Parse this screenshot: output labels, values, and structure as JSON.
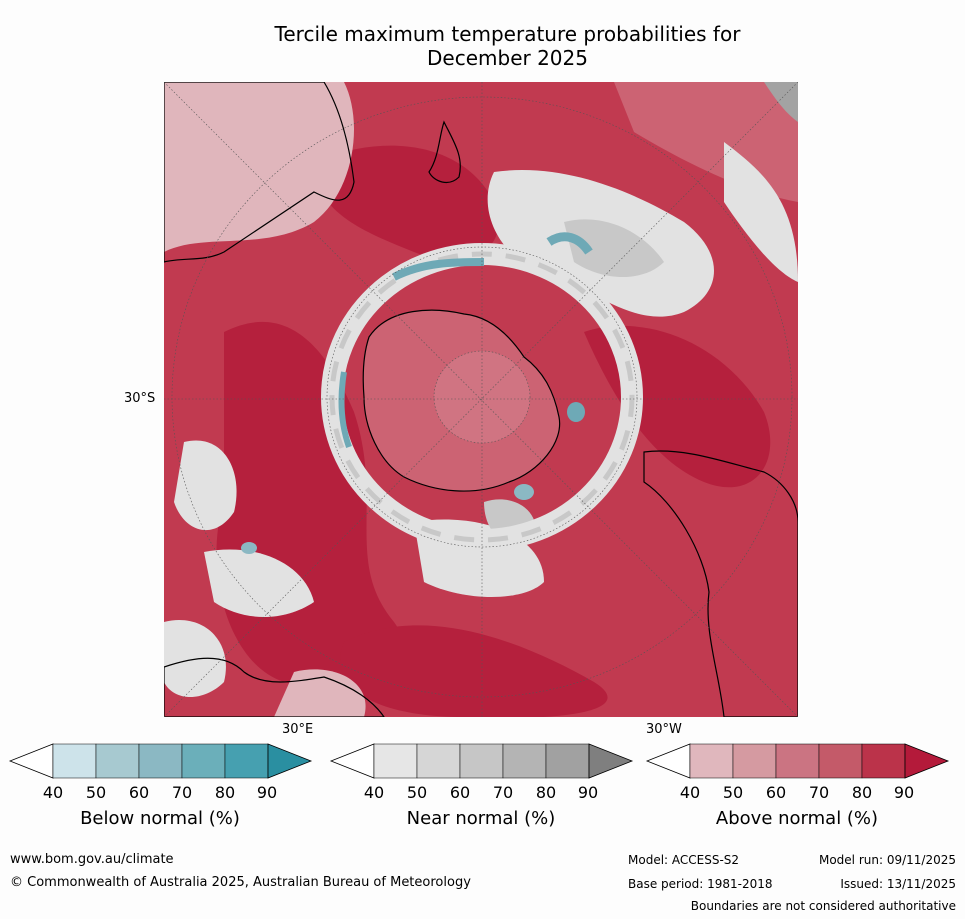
{
  "title_line1": "Tercile maximum temperature probabilities for",
  "title_line2": "December 2025",
  "map": {
    "lat_label": "30°S",
    "lon_label_e": "30°E",
    "lon_label_w": "30°W",
    "colors": {
      "above_90": "#b5203d",
      "above_80": "#c13a50",
      "above_70": "#cc6373",
      "above_60": "#d58a95",
      "above_50": "#e0b6bc",
      "near": "#e2e2e2",
      "near_dark": "#c8c8c8",
      "below": "#6ea9b6",
      "land_line": "#000000"
    }
  },
  "colorbars": [
    {
      "title": "Below normal (%)",
      "ticks": [
        "40",
        "50",
        "60",
        "70",
        "80",
        "90"
      ],
      "colors": [
        "#ffffff",
        "#cde3ea",
        "#a7c9d0",
        "#8bb8c3",
        "#6bafba",
        "#46a0b0",
        "#2a8fa1"
      ]
    },
    {
      "title": "Near normal (%)",
      "ticks": [
        "40",
        "50",
        "60",
        "70",
        "80",
        "90"
      ],
      "colors": [
        "#ffffff",
        "#e6e6e6",
        "#d6d6d6",
        "#c6c6c6",
        "#b4b4b4",
        "#a1a1a1",
        "#7f7f7f"
      ]
    },
    {
      "title": "Above normal (%)",
      "ticks": [
        "40",
        "50",
        "60",
        "70",
        "80",
        "90"
      ],
      "colors": [
        "#ffffff",
        "#e0b7bd",
        "#d59aa1",
        "#cb7482",
        "#c45a69",
        "#bb334a",
        "#b41a3a"
      ]
    }
  ],
  "footer": {
    "url": "www.bom.gov.au/climate",
    "copyright": "© Commonwealth of Australia 2025, Australian Bureau of Meteorology",
    "model": "Model: ACCESS-S2",
    "base_period": "Base period: 1981-2018",
    "model_run": "Model run: 09/11/2025",
    "issued": "Issued: 13/11/2025",
    "disclaimer": "Boundaries are not considered authoritative"
  }
}
